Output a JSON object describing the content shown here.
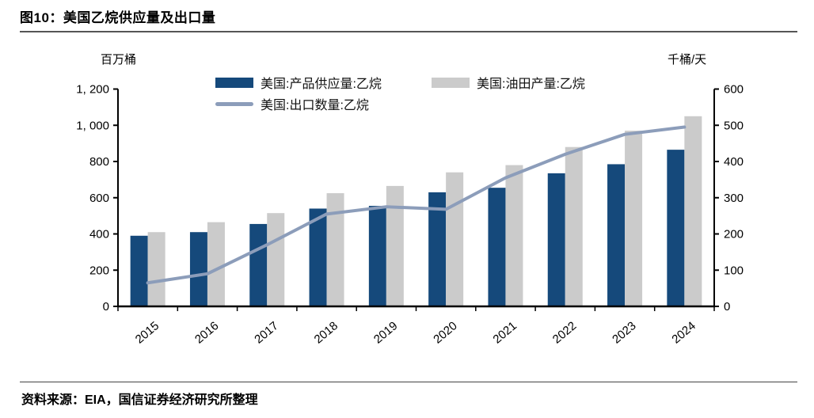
{
  "header": {
    "title": "图10：美国乙烷供应量及出口量"
  },
  "footer": {
    "source": "资料来源：EIA，国信证券经济研究所整理"
  },
  "colors": {
    "supply_bar": "#15497B",
    "production_bar": "#CBCBCB",
    "export_line": "#8C9DBA",
    "axis": "#000000",
    "rule": "#555555"
  },
  "chart_data": {
    "type": "bar+line",
    "categories": [
      "2015",
      "2016",
      "2017",
      "2018",
      "2019",
      "2020",
      "2021",
      "2022",
      "2023",
      "2024"
    ],
    "series": [
      {
        "name": "美国:产品供应量:乙烷",
        "type": "bar",
        "axis": "left",
        "color": "#15497B",
        "values": [
          390,
          410,
          455,
          540,
          555,
          630,
          655,
          735,
          785,
          865
        ]
      },
      {
        "name": "美国:油田产量:乙烷",
        "type": "bar",
        "axis": "left",
        "color": "#CBCBCB",
        "values": [
          410,
          465,
          515,
          625,
          665,
          740,
          780,
          880,
          970,
          1050
        ]
      },
      {
        "name": "美国:出口数量:乙烷",
        "type": "line",
        "axis": "right",
        "color": "#8C9DBA",
        "values": [
          65,
          90,
          170,
          255,
          275,
          268,
          355,
          420,
          475,
          495
        ]
      }
    ],
    "left_axis": {
      "label": "百万桶",
      "min": 0,
      "max": 1200,
      "step": 200,
      "tick_labels": [
        "0",
        "200",
        "400",
        "600",
        "800",
        "1, 000",
        "1, 200"
      ]
    },
    "right_axis": {
      "label": "千桶/天",
      "min": 0,
      "max": 600,
      "step": 100,
      "tick_labels": [
        "0",
        "100",
        "200",
        "300",
        "400",
        "500",
        "600"
      ]
    },
    "grid": false,
    "legend_position": "top-center"
  }
}
